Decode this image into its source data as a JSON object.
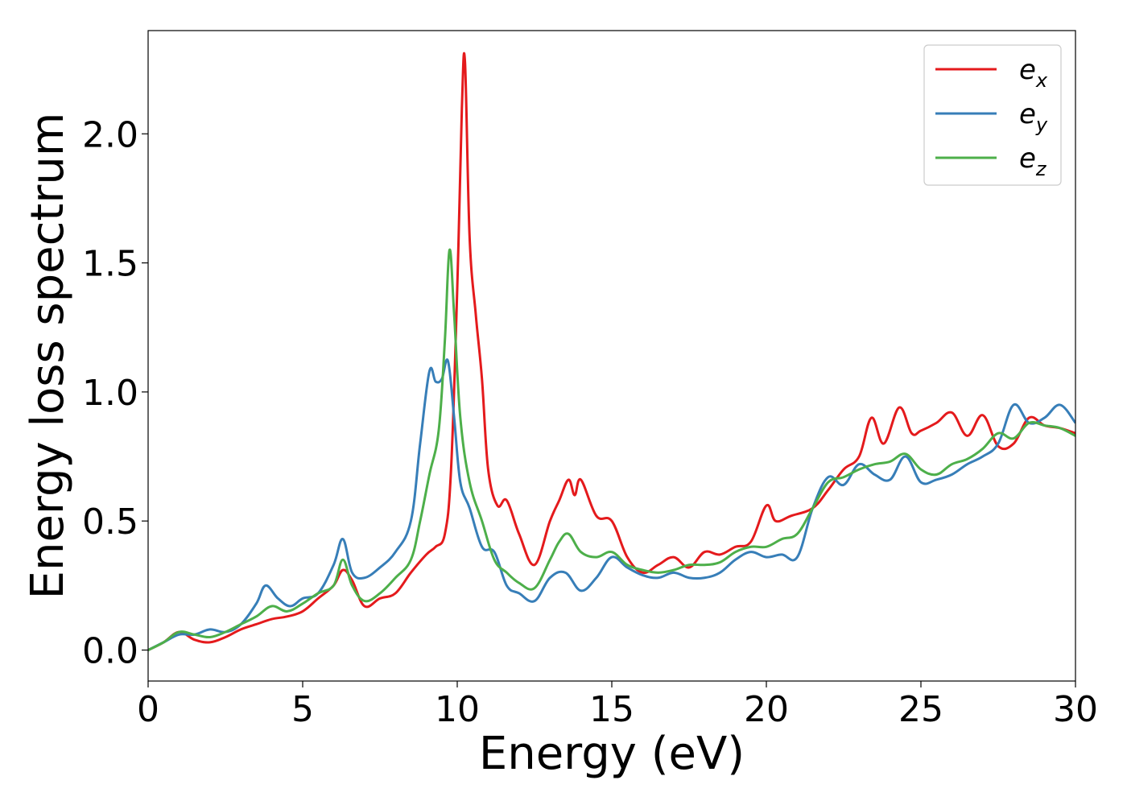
{
  "chart_data": {
    "type": "line",
    "xlabel": "Energy (eV)",
    "ylabel": "Energy loss spectrum",
    "xlim": [
      0,
      30
    ],
    "ylim": [
      -0.12,
      2.4
    ],
    "xticks": [
      0,
      5,
      10,
      15,
      20,
      25,
      30
    ],
    "xtick_labels": [
      "0",
      "5",
      "10",
      "15",
      "20",
      "25",
      "30"
    ],
    "yticks": [
      0.0,
      0.5,
      1.0,
      1.5,
      2.0
    ],
    "ytick_labels": [
      "0.0",
      "0.5",
      "1.0",
      "1.5",
      "2.0"
    ],
    "grid": false,
    "legend_position": "top-right",
    "series": [
      {
        "name": "e_x",
        "legend_base": "e",
        "legend_sub": "x",
        "color": "#e41a1c",
        "x": [
          0,
          0.5,
          1.0,
          1.5,
          2.0,
          2.5,
          3.0,
          3.5,
          4.0,
          4.5,
          5.0,
          5.5,
          6.0,
          6.3,
          6.6,
          7.0,
          7.5,
          8.0,
          8.5,
          9.0,
          9.3,
          9.6,
          9.8,
          10.0,
          10.15,
          10.25,
          10.4,
          10.6,
          10.8,
          11.0,
          11.3,
          11.6,
          12.0,
          12.5,
          13.0,
          13.3,
          13.6,
          13.8,
          14.0,
          14.5,
          15.0,
          15.5,
          16.0,
          16.5,
          17.0,
          17.5,
          18.0,
          18.5,
          19.0,
          19.5,
          20.0,
          20.3,
          20.8,
          21.5,
          22.0,
          22.5,
          23.0,
          23.4,
          23.8,
          24.3,
          24.7,
          25.0,
          25.5,
          26.0,
          26.5,
          27.0,
          27.5,
          28.0,
          28.5,
          29.0,
          29.5,
          30.0
        ],
        "y": [
          0.0,
          0.03,
          0.07,
          0.04,
          0.03,
          0.05,
          0.08,
          0.1,
          0.12,
          0.13,
          0.15,
          0.2,
          0.25,
          0.31,
          0.27,
          0.17,
          0.2,
          0.22,
          0.3,
          0.37,
          0.4,
          0.45,
          0.7,
          1.4,
          2.1,
          2.28,
          1.6,
          1.3,
          1.05,
          0.7,
          0.56,
          0.58,
          0.45,
          0.33,
          0.5,
          0.58,
          0.66,
          0.6,
          0.66,
          0.52,
          0.5,
          0.36,
          0.3,
          0.33,
          0.36,
          0.32,
          0.38,
          0.37,
          0.4,
          0.42,
          0.56,
          0.5,
          0.52,
          0.55,
          0.62,
          0.7,
          0.75,
          0.9,
          0.8,
          0.94,
          0.84,
          0.85,
          0.88,
          0.92,
          0.83,
          0.91,
          0.79,
          0.8,
          0.9,
          0.87,
          0.86,
          0.84
        ]
      },
      {
        "name": "e_y",
        "legend_base": "e",
        "legend_sub": "y",
        "color": "#377eb8",
        "x": [
          0,
          0.5,
          1.0,
          1.5,
          2.0,
          2.5,
          3.0,
          3.5,
          3.8,
          4.2,
          4.6,
          5.0,
          5.5,
          6.0,
          6.3,
          6.6,
          7.0,
          7.5,
          8.0,
          8.5,
          8.8,
          9.1,
          9.3,
          9.5,
          9.7,
          9.9,
          10.1,
          10.4,
          10.8,
          11.2,
          11.6,
          12.0,
          12.5,
          13.0,
          13.5,
          14.0,
          14.5,
          15.0,
          15.5,
          16.0,
          16.5,
          17.0,
          17.5,
          18.0,
          18.5,
          19.0,
          19.5,
          20.0,
          20.5,
          21.0,
          21.5,
          22.0,
          22.5,
          23.0,
          23.5,
          24.0,
          24.5,
          25.0,
          25.5,
          26.0,
          26.5,
          27.0,
          27.5,
          28.0,
          28.5,
          29.0,
          29.5,
          30.0
        ],
        "y": [
          0.0,
          0.03,
          0.06,
          0.06,
          0.08,
          0.07,
          0.1,
          0.18,
          0.25,
          0.2,
          0.17,
          0.2,
          0.22,
          0.33,
          0.43,
          0.3,
          0.28,
          0.32,
          0.38,
          0.5,
          0.8,
          1.08,
          1.04,
          1.05,
          1.12,
          0.9,
          0.65,
          0.55,
          0.4,
          0.38,
          0.25,
          0.22,
          0.19,
          0.28,
          0.3,
          0.23,
          0.28,
          0.36,
          0.32,
          0.29,
          0.28,
          0.3,
          0.28,
          0.28,
          0.3,
          0.35,
          0.38,
          0.36,
          0.37,
          0.36,
          0.55,
          0.67,
          0.64,
          0.72,
          0.68,
          0.66,
          0.75,
          0.65,
          0.66,
          0.68,
          0.72,
          0.75,
          0.8,
          0.95,
          0.88,
          0.9,
          0.95,
          0.88
        ]
      },
      {
        "name": "e_z",
        "legend_base": "e",
        "legend_sub": "z",
        "color": "#4daf4a",
        "x": [
          0,
          0.5,
          1.0,
          1.5,
          2.0,
          2.5,
          3.0,
          3.5,
          4.0,
          4.5,
          5.0,
          5.5,
          6.0,
          6.3,
          6.6,
          7.0,
          7.5,
          8.0,
          8.5,
          8.8,
          9.1,
          9.4,
          9.6,
          9.75,
          9.9,
          10.1,
          10.4,
          10.8,
          11.2,
          11.6,
          12.0,
          12.5,
          13.0,
          13.3,
          13.6,
          14.0,
          14.5,
          15.0,
          15.5,
          16.0,
          16.5,
          17.0,
          17.5,
          18.0,
          18.5,
          19.0,
          19.5,
          20.0,
          20.5,
          21.0,
          21.5,
          22.0,
          22.5,
          23.0,
          23.5,
          24.0,
          24.5,
          25.0,
          25.5,
          26.0,
          26.5,
          27.0,
          27.5,
          28.0,
          28.5,
          29.0,
          29.5,
          30.0
        ],
        "y": [
          0.0,
          0.03,
          0.07,
          0.06,
          0.05,
          0.07,
          0.1,
          0.13,
          0.17,
          0.15,
          0.18,
          0.22,
          0.25,
          0.35,
          0.25,
          0.19,
          0.22,
          0.28,
          0.35,
          0.5,
          0.68,
          0.85,
          1.2,
          1.55,
          1.3,
          0.9,
          0.65,
          0.5,
          0.35,
          0.3,
          0.26,
          0.24,
          0.35,
          0.42,
          0.45,
          0.38,
          0.36,
          0.38,
          0.33,
          0.31,
          0.3,
          0.31,
          0.33,
          0.33,
          0.34,
          0.38,
          0.4,
          0.4,
          0.43,
          0.45,
          0.55,
          0.65,
          0.67,
          0.7,
          0.72,
          0.73,
          0.76,
          0.7,
          0.68,
          0.72,
          0.74,
          0.78,
          0.84,
          0.82,
          0.88,
          0.87,
          0.86,
          0.83
        ]
      }
    ]
  }
}
